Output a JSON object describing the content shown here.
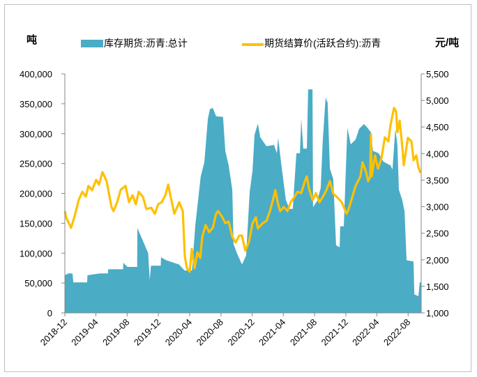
{
  "chart_data": {
    "type": "area+line",
    "title": "",
    "left_unit": "吨",
    "right_unit": "元/吨",
    "legend_position": "top",
    "grid": false,
    "colors": {
      "inventory": "#4BACC6",
      "price": "#FFC000"
    },
    "x_range": [
      "2018-12-01",
      "2022-09-21"
    ],
    "x_tick_labels": [
      "2018-12",
      "2019-04",
      "2019-08",
      "2019-12",
      "2020-04",
      "2020-08",
      "2020-12",
      "2021-04",
      "2021-08",
      "2021-12",
      "2022-04",
      "2022-08"
    ],
    "y_left": {
      "range": [
        0,
        400000
      ],
      "tick_labels": [
        "0",
        "50,000",
        "100,000",
        "150,000",
        "200,000",
        "250,000",
        "300,000",
        "350,000",
        "400,000"
      ],
      "ticks": [
        0,
        50000,
        100000,
        150000,
        200000,
        250000,
        300000,
        350000,
        400000
      ]
    },
    "y_right": {
      "range": [
        1000,
        5500
      ],
      "tick_labels": [
        "1,000",
        "1,500",
        "2,000",
        "2,500",
        "3,000",
        "3,500",
        "4,000",
        "4,500",
        "5,000",
        "5,500"
      ],
      "ticks": [
        1000,
        1500,
        2000,
        2500,
        3000,
        3500,
        4000,
        4500,
        5000,
        5500
      ]
    },
    "series": [
      {
        "name": "库存期货:沥青:总计",
        "type": "area",
        "axis": "left",
        "points": [
          [
            "2018-12-01",
            63000
          ],
          [
            "2018-12-15",
            66000
          ],
          [
            "2018-12-31",
            66000
          ],
          [
            "2019-01-03",
            51000
          ],
          [
            "2019-02-26",
            51000
          ],
          [
            "2019-02-27",
            63000
          ],
          [
            "2019-04-16",
            66000
          ],
          [
            "2019-05-18",
            66000
          ],
          [
            "2019-05-19",
            73000
          ],
          [
            "2019-07-16",
            73000
          ],
          [
            "2019-07-17",
            84000
          ],
          [
            "2019-08-02",
            77000
          ],
          [
            "2019-09-09",
            77000
          ],
          [
            "2019-09-10",
            142000
          ],
          [
            "2019-10-22",
            100000
          ],
          [
            "2019-10-28",
            55000
          ],
          [
            "2019-11-02",
            79000
          ],
          [
            "2019-12-10",
            79000
          ],
          [
            "2019-12-11",
            93000
          ],
          [
            "2020-01-01",
            88000
          ],
          [
            "2020-02-19",
            81000
          ],
          [
            "2020-03-12",
            71000
          ],
          [
            "2020-04-10",
            71000
          ],
          [
            "2020-04-23",
            147000
          ],
          [
            "2020-05-14",
            228000
          ],
          [
            "2020-05-28",
            252000
          ],
          [
            "2020-06-11",
            325000
          ],
          [
            "2020-06-19",
            341000
          ],
          [
            "2020-06-30",
            343000
          ],
          [
            "2020-07-13",
            329000
          ],
          [
            "2020-08-09",
            328000
          ],
          [
            "2020-08-18",
            271000
          ],
          [
            "2020-08-31",
            247000
          ],
          [
            "2020-09-14",
            206000
          ],
          [
            "2020-09-19",
            115000
          ],
          [
            "2020-10-02",
            100000
          ],
          [
            "2020-10-22",
            81000
          ],
          [
            "2020-11-07",
            96000
          ],
          [
            "2020-11-21",
            203000
          ],
          [
            "2020-12-02",
            238000
          ],
          [
            "2020-12-10",
            298000
          ],
          [
            "2020-12-23",
            317000
          ],
          [
            "2021-01-01",
            294000
          ],
          [
            "2021-01-25",
            279000
          ],
          [
            "2021-02-24",
            281000
          ],
          [
            "2021-03-07",
            267000
          ],
          [
            "2021-03-12",
            293000
          ],
          [
            "2021-03-23",
            253000
          ],
          [
            "2021-04-11",
            189000
          ],
          [
            "2021-04-25",
            174000
          ],
          [
            "2021-05-08",
            174000
          ],
          [
            "2021-05-22",
            267000
          ],
          [
            "2021-06-05",
            267000
          ],
          [
            "2021-06-10",
            325000
          ],
          [
            "2021-06-18",
            275000
          ],
          [
            "2021-07-02",
            275000
          ],
          [
            "2021-07-07",
            374000
          ],
          [
            "2021-07-24",
            374000
          ],
          [
            "2021-07-26",
            177000
          ],
          [
            "2021-08-12",
            188000
          ],
          [
            "2021-08-25",
            209000
          ],
          [
            "2021-09-02",
            288000
          ],
          [
            "2021-09-13",
            360000
          ],
          [
            "2021-09-21",
            352000
          ],
          [
            "2021-09-30",
            241000
          ],
          [
            "2021-10-13",
            224000
          ],
          [
            "2021-10-24",
            113000
          ],
          [
            "2021-11-07",
            110000
          ],
          [
            "2021-11-09",
            145000
          ],
          [
            "2021-11-23",
            145000
          ],
          [
            "2021-12-07",
            310000
          ],
          [
            "2021-12-20",
            282000
          ],
          [
            "2022-01-08",
            290000
          ],
          [
            "2022-01-22",
            308000
          ],
          [
            "2022-02-10",
            316000
          ],
          [
            "2022-02-23",
            310000
          ],
          [
            "2022-03-09",
            302000
          ],
          [
            "2022-03-17",
            271000
          ],
          [
            "2022-04-08",
            267000
          ],
          [
            "2022-04-27",
            253000
          ],
          [
            "2022-05-24",
            247000
          ],
          [
            "2022-06-01",
            240000
          ],
          [
            "2022-06-12",
            308000
          ],
          [
            "2022-06-20",
            282000
          ],
          [
            "2022-06-26",
            206000
          ],
          [
            "2022-07-09",
            189000
          ],
          [
            "2022-07-18",
            170000
          ],
          [
            "2022-07-26",
            88000
          ],
          [
            "2022-08-22",
            86000
          ],
          [
            "2022-08-25",
            31000
          ],
          [
            "2022-09-10",
            28000
          ],
          [
            "2022-09-15",
            51000
          ],
          [
            "2022-09-21",
            51000
          ]
        ]
      },
      {
        "name": "期货结算价(活跃合约):沥青",
        "type": "line",
        "axis": "right",
        "points": [
          [
            "2018-12-01",
            2915
          ],
          [
            "2018-12-06",
            2800
          ],
          [
            "2018-12-25",
            2600
          ],
          [
            "2019-01-08",
            2820
          ],
          [
            "2019-01-24",
            3125
          ],
          [
            "2019-02-07",
            3280
          ],
          [
            "2019-02-21",
            3190
          ],
          [
            "2019-03-03",
            3390
          ],
          [
            "2019-03-17",
            3310
          ],
          [
            "2019-04-02",
            3505
          ],
          [
            "2019-04-13",
            3415
          ],
          [
            "2019-04-27",
            3650
          ],
          [
            "2019-05-13",
            3480
          ],
          [
            "2019-06-01",
            2995
          ],
          [
            "2019-06-09",
            2915
          ],
          [
            "2019-06-23",
            3085
          ],
          [
            "2019-07-07",
            3320
          ],
          [
            "2019-07-26",
            3390
          ],
          [
            "2019-08-08",
            3085
          ],
          [
            "2019-08-22",
            3215
          ],
          [
            "2019-09-04",
            3045
          ],
          [
            "2019-09-15",
            3280
          ],
          [
            "2019-10-02",
            3180
          ],
          [
            "2019-10-15",
            2955
          ],
          [
            "2019-11-03",
            2980
          ],
          [
            "2019-11-17",
            2865
          ],
          [
            "2019-11-30",
            3045
          ],
          [
            "2019-12-14",
            3085
          ],
          [
            "2019-12-28",
            3215
          ],
          [
            "2020-01-08",
            3415
          ],
          [
            "2020-01-18",
            3180
          ],
          [
            "2020-02-01",
            2865
          ],
          [
            "2020-02-20",
            3085
          ],
          [
            "2020-03-05",
            2915
          ],
          [
            "2020-03-13",
            2075
          ],
          [
            "2020-03-21",
            1840
          ],
          [
            "2020-04-01",
            1775
          ],
          [
            "2020-04-09",
            2205
          ],
          [
            "2020-04-20",
            1840
          ],
          [
            "2020-05-01",
            2140
          ],
          [
            "2020-05-12",
            2035
          ],
          [
            "2020-05-20",
            2430
          ],
          [
            "2020-06-02",
            2655
          ],
          [
            "2020-06-16",
            2520
          ],
          [
            "2020-06-30",
            2600
          ],
          [
            "2020-07-13",
            2865
          ],
          [
            "2020-07-21",
            2915
          ],
          [
            "2020-08-04",
            2820
          ],
          [
            "2020-08-18",
            2690
          ],
          [
            "2020-08-31",
            2720
          ],
          [
            "2020-09-14",
            2430
          ],
          [
            "2020-09-27",
            2325
          ],
          [
            "2020-10-11",
            2455
          ],
          [
            "2020-10-22",
            2455
          ],
          [
            "2020-11-04",
            2170
          ],
          [
            "2020-11-18",
            2340
          ],
          [
            "2020-12-02",
            2690
          ],
          [
            "2020-12-15",
            2800
          ],
          [
            "2020-12-23",
            2590
          ],
          [
            "2021-01-11",
            2690
          ],
          [
            "2021-01-25",
            2730
          ],
          [
            "2021-02-08",
            2915
          ],
          [
            "2021-02-21",
            3150
          ],
          [
            "2021-03-01",
            3310
          ],
          [
            "2021-03-10",
            3085
          ],
          [
            "2021-03-20",
            2915
          ],
          [
            "2021-04-03",
            2995
          ],
          [
            "2021-04-17",
            2915
          ],
          [
            "2021-04-30",
            3085
          ],
          [
            "2021-05-14",
            3180
          ],
          [
            "2021-05-27",
            3280
          ],
          [
            "2021-06-10",
            3255
          ],
          [
            "2021-06-24",
            3480
          ],
          [
            "2021-07-02",
            3570
          ],
          [
            "2021-07-10",
            3350
          ],
          [
            "2021-07-24",
            3125
          ],
          [
            "2021-08-06",
            3255
          ],
          [
            "2021-08-20",
            3085
          ],
          [
            "2021-09-02",
            3180
          ],
          [
            "2021-09-16",
            3310
          ],
          [
            "2021-09-30",
            3480
          ],
          [
            "2021-10-13",
            3245
          ],
          [
            "2021-10-27",
            3180
          ],
          [
            "2021-11-15",
            3085
          ],
          [
            "2021-12-04",
            2865
          ],
          [
            "2021-12-12",
            2955
          ],
          [
            "2021-12-26",
            3180
          ],
          [
            "2022-01-08",
            3390
          ],
          [
            "2022-01-27",
            3570
          ],
          [
            "2022-02-04",
            3835
          ],
          [
            "2022-02-18",
            3650
          ],
          [
            "2022-02-26",
            3480
          ],
          [
            "2022-03-06",
            3570
          ],
          [
            "2022-03-09",
            4360
          ],
          [
            "2022-03-12",
            3570
          ],
          [
            "2022-03-25",
            3965
          ],
          [
            "2022-04-05",
            3715
          ],
          [
            "2022-04-19",
            3910
          ],
          [
            "2022-05-02",
            4305
          ],
          [
            "2022-05-16",
            4230
          ],
          [
            "2022-05-24",
            4530
          ],
          [
            "2022-06-07",
            4860
          ],
          [
            "2022-06-15",
            4790
          ],
          [
            "2022-06-20",
            4400
          ],
          [
            "2022-06-29",
            4620
          ],
          [
            "2022-07-09",
            4135
          ],
          [
            "2022-07-15",
            3780
          ],
          [
            "2022-07-31",
            4295
          ],
          [
            "2022-08-14",
            4230
          ],
          [
            "2022-08-22",
            3875
          ],
          [
            "2022-09-02",
            3965
          ],
          [
            "2022-09-10",
            3740
          ],
          [
            "2022-09-18",
            3635
          ]
        ]
      }
    ]
  }
}
